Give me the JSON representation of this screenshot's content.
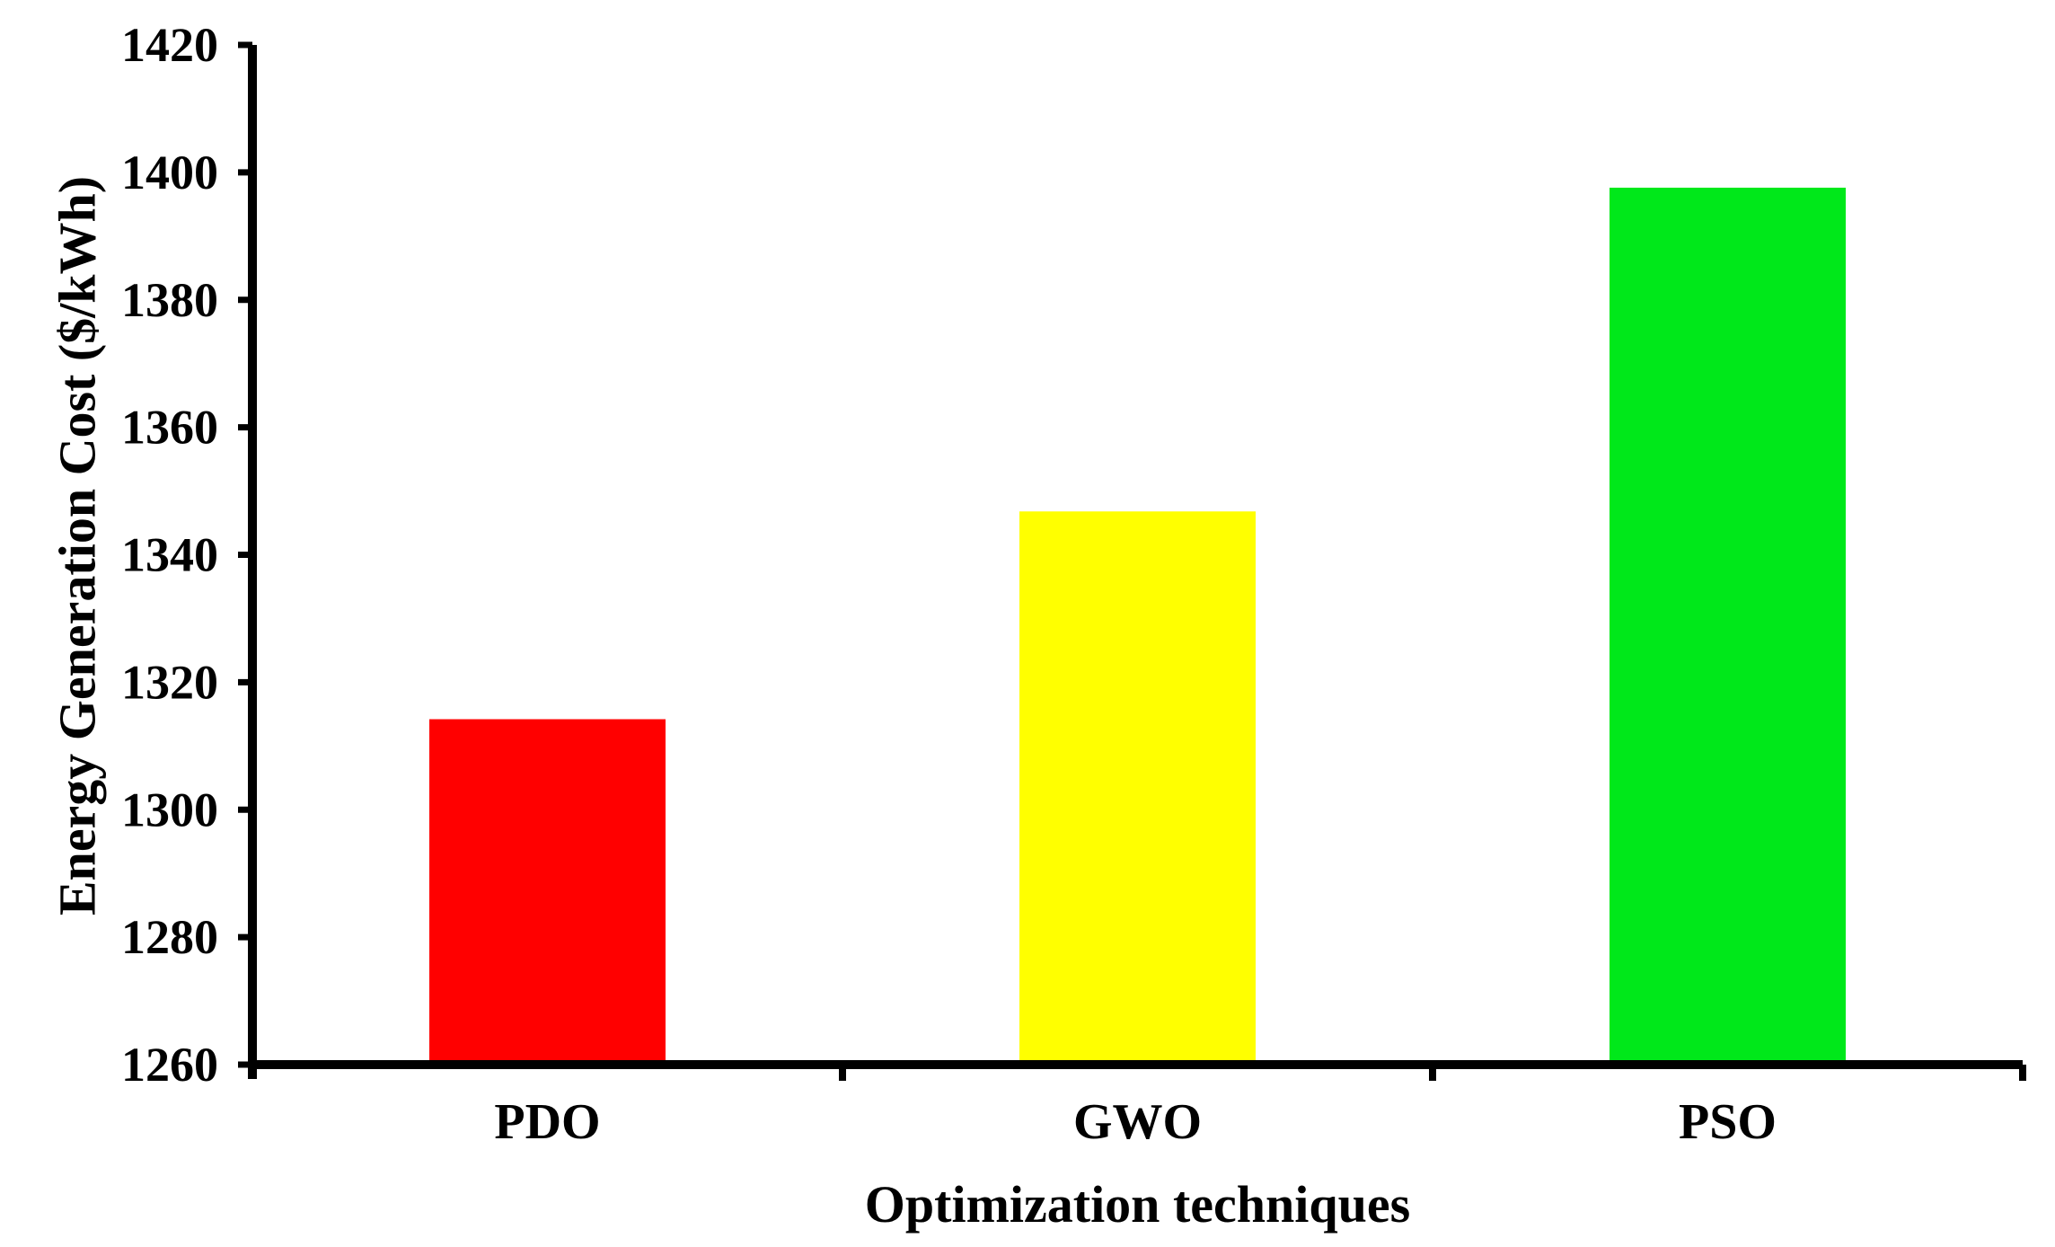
{
  "chart_data": {
    "type": "bar",
    "categories": [
      "PDO",
      "GWO",
      "PSO"
    ],
    "series": [
      {
        "values": [
          1314.2,
          1346.8,
          1397.6
        ]
      }
    ],
    "colors": [
      "#ff0000",
      "#ffff00",
      "#00e81a"
    ],
    "xlabel": "Optimization techniques",
    "ylabel": "Energy Generation Cost ($/kWh)",
    "ylim": [
      1260,
      1420
    ],
    "yticks": [
      "1260",
      "1280",
      "1300",
      "1320",
      "1340",
      "1360",
      "1380",
      "1400",
      "1420"
    ],
    "grid": false,
    "legend": "none"
  }
}
